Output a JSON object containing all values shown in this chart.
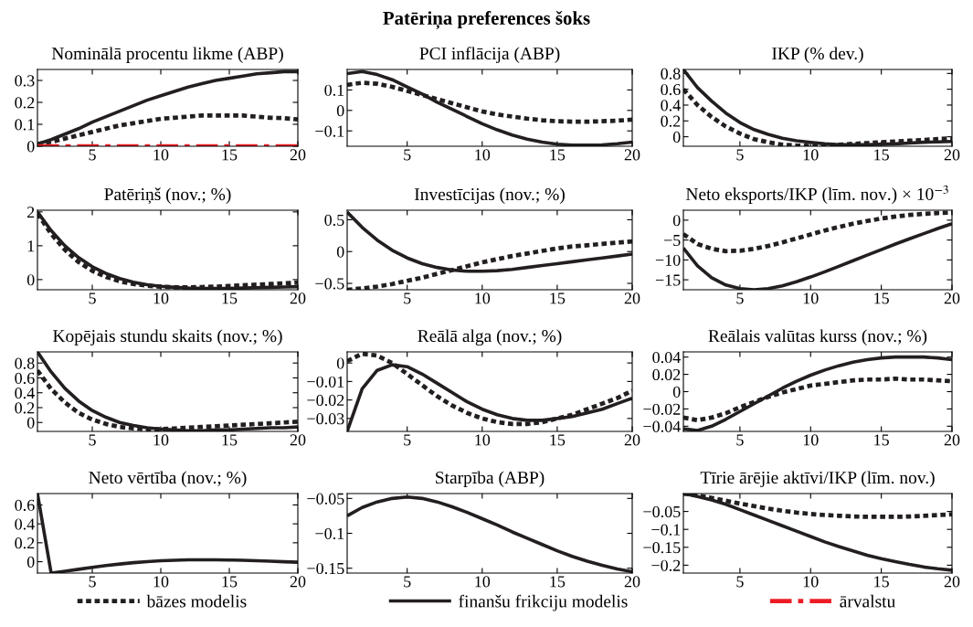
{
  "chart_data": [
    {
      "type": "other",
      "title": "Patēriņa preferences šoks"
    },
    {
      "type": "line",
      "title": "Nominālā procentu likme (ABP)",
      "x": [
        1,
        2,
        3,
        4,
        5,
        6,
        7,
        8,
        9,
        10,
        11,
        12,
        13,
        14,
        15,
        16,
        17,
        18,
        19,
        20
      ],
      "xlim": [
        1,
        20
      ],
      "xticks": [
        5,
        10,
        15,
        20
      ],
      "ylim": [
        0,
        0.35
      ],
      "yticks": [
        0,
        0.1,
        0.2,
        0.3
      ],
      "legend": "bottom",
      "grid": false,
      "series": [
        {
          "name": "bāzes modelis",
          "color": "#231f20",
          "line_style": "dotted",
          "values": [
            0.01,
            0.02,
            0.035,
            0.05,
            0.065,
            0.08,
            0.095,
            0.105,
            0.115,
            0.125,
            0.13,
            0.135,
            0.14,
            0.14,
            0.14,
            0.14,
            0.135,
            0.13,
            0.128,
            0.122
          ]
        },
        {
          "name": "finanšu frikciju modelis",
          "color": "#231f20",
          "line_style": "solid",
          "values": [
            0.01,
            0.03,
            0.055,
            0.08,
            0.11,
            0.135,
            0.16,
            0.185,
            0.21,
            0.23,
            0.25,
            0.27,
            0.285,
            0.3,
            0.31,
            0.32,
            0.33,
            0.335,
            0.34,
            0.34
          ]
        },
        {
          "name": "ārvalstu",
          "color": "#ed1c24",
          "line_style": "dashdot",
          "values": [
            0,
            0,
            0,
            0,
            0,
            0,
            0,
            0,
            0,
            0,
            0,
            0,
            0,
            0,
            0,
            0,
            0,
            0,
            0,
            0
          ]
        }
      ]
    },
    {
      "type": "line",
      "title": "PCI inflācija (ABP)",
      "x": [
        1,
        2,
        3,
        4,
        5,
        6,
        7,
        8,
        9,
        10,
        11,
        12,
        13,
        14,
        15,
        16,
        17,
        18,
        19,
        20
      ],
      "xlim": [
        1,
        20
      ],
      "xticks": [
        5,
        10,
        15,
        20
      ],
      "ylim": [
        -0.175,
        0.2
      ],
      "yticks": [
        {
          "value": -0.1,
          "label": "−0.1"
        },
        0,
        0.1
      ],
      "series": [
        {
          "color": "#231f20",
          "line_style": "dotted",
          "values": [
            0.125,
            0.135,
            0.13,
            0.115,
            0.095,
            0.075,
            0.055,
            0.035,
            0.015,
            -0.005,
            -0.02,
            -0.03,
            -0.04,
            -0.048,
            -0.053,
            -0.055,
            -0.055,
            -0.053,
            -0.05,
            -0.045
          ]
        },
        {
          "color": "#231f20",
          "line_style": "solid",
          "values": [
            0.18,
            0.19,
            0.175,
            0.15,
            0.115,
            0.08,
            0.04,
            0.005,
            -0.03,
            -0.065,
            -0.095,
            -0.12,
            -0.14,
            -0.155,
            -0.165,
            -0.17,
            -0.17,
            -0.168,
            -0.163,
            -0.155
          ]
        }
      ]
    },
    {
      "type": "line",
      "title": "IKP (% dev.)",
      "x": [
        1,
        2,
        3,
        4,
        5,
        6,
        7,
        8,
        9,
        10,
        11,
        12,
        13,
        14,
        15,
        16,
        17,
        18,
        19,
        20
      ],
      "xlim": [
        1,
        20
      ],
      "xticks": [
        5,
        10,
        15,
        20
      ],
      "ylim": [
        -0.12,
        0.85
      ],
      "yticks": [
        0,
        0.2,
        0.4,
        0.6,
        0.8
      ],
      "series": [
        {
          "color": "#231f20",
          "line_style": "dotted",
          "values": [
            0.6,
            0.4,
            0.25,
            0.13,
            0.04,
            -0.03,
            -0.07,
            -0.1,
            -0.11,
            -0.115,
            -0.11,
            -0.1,
            -0.09,
            -0.08,
            -0.07,
            -0.06,
            -0.05,
            -0.04,
            -0.03,
            -0.02
          ]
        },
        {
          "color": "#231f20",
          "line_style": "solid",
          "values": [
            0.85,
            0.62,
            0.45,
            0.3,
            0.18,
            0.09,
            0.03,
            -0.02,
            -0.05,
            -0.07,
            -0.09,
            -0.1,
            -0.1,
            -0.1,
            -0.095,
            -0.09,
            -0.08,
            -0.07,
            -0.065,
            -0.06
          ]
        }
      ]
    },
    {
      "type": "line",
      "title": "Patēriņš (nov.; %)",
      "x": [
        1,
        2,
        3,
        4,
        5,
        6,
        7,
        8,
        9,
        10,
        11,
        12,
        13,
        14,
        15,
        16,
        17,
        18,
        19,
        20
      ],
      "xlim": [
        1,
        20
      ],
      "xticks": [
        5,
        10,
        15,
        20
      ],
      "ylim": [
        -0.3,
        2.05
      ],
      "yticks": [
        0,
        1,
        2
      ],
      "series": [
        {
          "color": "#231f20",
          "line_style": "dotted",
          "values": [
            1.95,
            1.35,
            0.88,
            0.52,
            0.26,
            0.08,
            -0.05,
            -0.13,
            -0.18,
            -0.21,
            -0.23,
            -0.23,
            -0.22,
            -0.21,
            -0.19,
            -0.17,
            -0.15,
            -0.13,
            -0.11,
            -0.09
          ]
        },
        {
          "color": "#231f20",
          "line_style": "solid",
          "values": [
            2.0,
            1.45,
            1.0,
            0.65,
            0.38,
            0.18,
            0.03,
            -0.08,
            -0.15,
            -0.2,
            -0.23,
            -0.25,
            -0.26,
            -0.26,
            -0.26,
            -0.25,
            -0.24,
            -0.23,
            -0.22,
            -0.21
          ]
        }
      ]
    },
    {
      "type": "line",
      "title": "Investīcijas (nov.; %)",
      "x": [
        1,
        2,
        3,
        4,
        5,
        6,
        7,
        8,
        9,
        10,
        11,
        12,
        13,
        14,
        15,
        16,
        17,
        18,
        19,
        20
      ],
      "xlim": [
        1,
        20
      ],
      "xticks": [
        5,
        10,
        15,
        20
      ],
      "ylim": [
        -0.6,
        0.65
      ],
      "yticks": [
        {
          "value": -0.5,
          "label": "−0.5"
        },
        0,
        0.5
      ],
      "series": [
        {
          "color": "#231f20",
          "line_style": "dotted",
          "values": [
            -0.6,
            -0.58,
            -0.55,
            -0.51,
            -0.46,
            -0.41,
            -0.35,
            -0.29,
            -0.23,
            -0.17,
            -0.12,
            -0.07,
            -0.03,
            0.01,
            0.05,
            0.08,
            0.1,
            0.12,
            0.14,
            0.16
          ]
        },
        {
          "color": "#231f20",
          "line_style": "solid",
          "values": [
            0.62,
            0.38,
            0.18,
            0.02,
            -0.1,
            -0.19,
            -0.25,
            -0.29,
            -0.31,
            -0.31,
            -0.3,
            -0.28,
            -0.25,
            -0.22,
            -0.19,
            -0.16,
            -0.13,
            -0.1,
            -0.07,
            -0.04
          ]
        }
      ]
    },
    {
      "type": "line",
      "title": "Neto eksports/IKP (līm. nov.) × 10$^{−3}$",
      "x": [
        1,
        2,
        3,
        4,
        5,
        6,
        7,
        8,
        9,
        10,
        11,
        12,
        13,
        14,
        15,
        16,
        17,
        18,
        19,
        20
      ],
      "xlim": [
        1,
        20
      ],
      "xticks": [
        5,
        10,
        15,
        20
      ],
      "ylim": [
        -17.5,
        2.5
      ],
      "yticks": [
        {
          "value": -15,
          "label": "−15"
        },
        {
          "value": -10,
          "label": "−10"
        },
        {
          "value": -5,
          "label": "−5"
        },
        0
      ],
      "series": [
        {
          "color": "#231f20",
          "line_style": "dotted",
          "values": [
            -3.5,
            -6,
            -7.2,
            -7.8,
            -7.7,
            -7.2,
            -6.5,
            -5.6,
            -4.6,
            -3.6,
            -2.6,
            -1.7,
            -0.9,
            -0.2,
            0.4,
            0.9,
            1.3,
            1.6,
            1.8,
            1.9
          ]
        },
        {
          "color": "#231f20",
          "line_style": "solid",
          "values": [
            -7,
            -11.5,
            -14.5,
            -16.3,
            -17.2,
            -17.5,
            -17.2,
            -16.5,
            -15.5,
            -14.3,
            -13,
            -11.6,
            -10.2,
            -8.8,
            -7.4,
            -6,
            -4.7,
            -3.4,
            -2.1,
            -0.9
          ]
        }
      ]
    },
    {
      "type": "line",
      "title": "Kopējais stundu skaits (nov.; %)",
      "x": [
        1,
        2,
        3,
        4,
        5,
        6,
        7,
        8,
        9,
        10,
        11,
        12,
        13,
        14,
        15,
        16,
        17,
        18,
        19,
        20
      ],
      "xlim": [
        1,
        20
      ],
      "xticks": [
        5,
        10,
        15,
        20
      ],
      "ylim": [
        -0.12,
        0.95
      ],
      "yticks": [
        0,
        0.2,
        0.4,
        0.6,
        0.8
      ],
      "series": [
        {
          "color": "#231f20",
          "line_style": "dotted",
          "values": [
            0.7,
            0.45,
            0.27,
            0.13,
            0.04,
            -0.02,
            -0.06,
            -0.08,
            -0.09,
            -0.09,
            -0.08,
            -0.07,
            -0.06,
            -0.05,
            -0.04,
            -0.03,
            -0.02,
            -0.01,
            0.0,
            0.01
          ]
        },
        {
          "color": "#231f20",
          "line_style": "solid",
          "values": [
            0.95,
            0.68,
            0.46,
            0.29,
            0.16,
            0.07,
            0.0,
            -0.04,
            -0.07,
            -0.09,
            -0.1,
            -0.11,
            -0.11,
            -0.1,
            -0.1,
            -0.09,
            -0.08,
            -0.07,
            -0.07,
            -0.06
          ]
        }
      ]
    },
    {
      "type": "line",
      "title": "Reālā alga (nov.; %)",
      "x": [
        1,
        2,
        3,
        4,
        5,
        6,
        7,
        8,
        9,
        10,
        11,
        12,
        13,
        14,
        15,
        16,
        17,
        18,
        19,
        20
      ],
      "xlim": [
        1,
        20
      ],
      "xticks": [
        5,
        10,
        15,
        20
      ],
      "ylim": [
        -0.037,
        0.006
      ],
      "yticks": [
        {
          "value": -0.03,
          "label": "−0.03"
        },
        {
          "value": -0.02,
          "label": "−0.02"
        },
        {
          "value": -0.01,
          "label": "−0.01"
        },
        0
      ],
      "series": [
        {
          "color": "#231f20",
          "line_style": "dotted",
          "values": [
            0.001,
            0.005,
            0.004,
            0.0,
            -0.006,
            -0.012,
            -0.018,
            -0.023,
            -0.027,
            -0.03,
            -0.032,
            -0.033,
            -0.033,
            -0.032,
            -0.03,
            -0.028,
            -0.025,
            -0.022,
            -0.019,
            -0.015
          ]
        },
        {
          "color": "#231f20",
          "line_style": "solid",
          "values": [
            -0.037,
            -0.014,
            -0.004,
            -0.001,
            -0.002,
            -0.006,
            -0.011,
            -0.016,
            -0.021,
            -0.025,
            -0.028,
            -0.03,
            -0.031,
            -0.031,
            -0.03,
            -0.029,
            -0.027,
            -0.025,
            -0.022,
            -0.019
          ]
        }
      ]
    },
    {
      "type": "line",
      "title": "Reālais valūtas kurss (nov.; %)",
      "x": [
        1,
        2,
        3,
        4,
        5,
        6,
        7,
        8,
        9,
        10,
        11,
        12,
        13,
        14,
        15,
        16,
        17,
        18,
        19,
        20
      ],
      "xlim": [
        1,
        20
      ],
      "xticks": [
        5,
        10,
        15,
        20
      ],
      "ylim": [
        -0.046,
        0.046
      ],
      "yticks": [
        {
          "value": -0.04,
          "label": "−0.04"
        },
        {
          "value": -0.02,
          "label": "−0.02"
        },
        0,
        0.02,
        0.04
      ],
      "series": [
        {
          "color": "#231f20",
          "line_style": "dotted",
          "values": [
            -0.03,
            -0.033,
            -0.03,
            -0.025,
            -0.018,
            -0.012,
            -0.006,
            -0.001,
            0.003,
            0.007,
            0.009,
            0.011,
            0.013,
            0.014,
            0.014,
            0.015,
            0.014,
            0.014,
            0.013,
            0.012
          ]
        },
        {
          "color": "#231f20",
          "line_style": "solid",
          "values": [
            -0.043,
            -0.045,
            -0.04,
            -0.032,
            -0.023,
            -0.014,
            -0.005,
            0.004,
            0.012,
            0.019,
            0.025,
            0.03,
            0.034,
            0.037,
            0.039,
            0.04,
            0.04,
            0.04,
            0.039,
            0.037
          ]
        }
      ]
    },
    {
      "type": "line",
      "title": "Neto vērtība (nov.; %)",
      "x": [
        1,
        2,
        3,
        4,
        5,
        6,
        7,
        8,
        9,
        10,
        11,
        12,
        13,
        14,
        15,
        16,
        17,
        18,
        19,
        20
      ],
      "xlim": [
        1,
        20
      ],
      "xticks": [
        5,
        10,
        15,
        20
      ],
      "ylim": [
        -0.12,
        0.72
      ],
      "yticks": [
        0,
        0.2,
        0.4,
        0.6
      ],
      "series": [
        {
          "color": "#231f20",
          "line_style": "solid",
          "values": [
            0.72,
            -0.12,
            -0.1,
            -0.08,
            -0.06,
            -0.04,
            -0.025,
            -0.01,
            0.0,
            0.01,
            0.015,
            0.02,
            0.02,
            0.02,
            0.018,
            0.015,
            0.01,
            0.005,
            0.0,
            -0.005
          ]
        }
      ]
    },
    {
      "type": "line",
      "title": "Starpība (ABP)",
      "x": [
        1,
        2,
        3,
        4,
        5,
        6,
        7,
        8,
        9,
        10,
        11,
        12,
        13,
        14,
        15,
        16,
        17,
        18,
        19,
        20
      ],
      "xlim": [
        1,
        20
      ],
      "xticks": [
        5,
        10,
        15,
        20
      ],
      "ylim": [
        -0.157,
        -0.043
      ],
      "yticks": [
        {
          "value": -0.15,
          "label": "−0.15"
        },
        {
          "value": -0.1,
          "label": "−0.1"
        },
        {
          "value": -0.05,
          "label": "−0.05"
        }
      ],
      "series": [
        {
          "color": "#231f20",
          "line_style": "solid",
          "values": [
            -0.075,
            -0.063,
            -0.055,
            -0.05,
            -0.048,
            -0.05,
            -0.055,
            -0.062,
            -0.07,
            -0.079,
            -0.088,
            -0.098,
            -0.107,
            -0.116,
            -0.125,
            -0.133,
            -0.14,
            -0.146,
            -0.151,
            -0.155
          ]
        }
      ]
    },
    {
      "type": "line",
      "title": "Tīrie ārējie aktīvi/IKP (līm. nov.)",
      "x": [
        1,
        2,
        3,
        4,
        5,
        6,
        7,
        8,
        9,
        10,
        11,
        12,
        13,
        14,
        15,
        16,
        17,
        18,
        19,
        20
      ],
      "xlim": [
        1,
        20
      ],
      "xticks": [
        5,
        10,
        15,
        20
      ],
      "ylim": [
        -0.222,
        0
      ],
      "yticks": [
        {
          "value": -0.2,
          "label": "−0.2"
        },
        {
          "value": -0.15,
          "label": "−0.15"
        },
        {
          "value": -0.1,
          "label": "−0.1"
        },
        {
          "value": -0.05,
          "label": "−0.05"
        }
      ],
      "series": [
        {
          "color": "#231f20",
          "line_style": "dotted",
          "values": [
            0,
            -0.005,
            -0.012,
            -0.02,
            -0.028,
            -0.035,
            -0.042,
            -0.048,
            -0.053,
            -0.057,
            -0.06,
            -0.062,
            -0.064,
            -0.065,
            -0.065,
            -0.065,
            -0.064,
            -0.062,
            -0.06,
            -0.058
          ]
        },
        {
          "color": "#231f20",
          "line_style": "solid",
          "values": [
            0,
            -0.008,
            -0.018,
            -0.03,
            -0.045,
            -0.06,
            -0.075,
            -0.09,
            -0.105,
            -0.12,
            -0.135,
            -0.148,
            -0.16,
            -0.172,
            -0.182,
            -0.19,
            -0.198,
            -0.205,
            -0.21,
            -0.214
          ]
        }
      ]
    }
  ]
}
